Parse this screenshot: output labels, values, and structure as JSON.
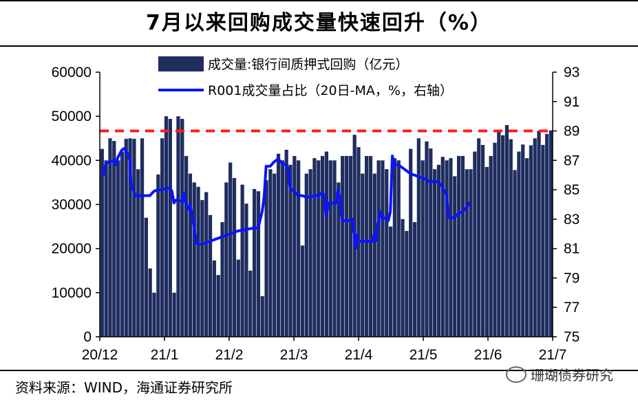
{
  "title": "7月以来回购成交量快速回升（%）",
  "source": "资料来源：WIND，海通证券研究所",
  "watermark": "珊瑚债券研究",
  "colors": {
    "bar": "#1f2d5f",
    "line": "#0a14ff",
    "threshold": "#ff1a1a"
  },
  "chart_data": {
    "type": "bar",
    "legend": [
      {
        "name": "成交量:银行间质押式回购（亿元）",
        "kind": "bar"
      },
      {
        "name": "R001成交量占比（20日-MA，%，右轴）",
        "kind": "line"
      }
    ],
    "x_ticks": [
      "20/12",
      "21/1",
      "21/2",
      "21/3",
      "21/4",
      "21/5",
      "21/6",
      "21/7"
    ],
    "y_left": {
      "min": 0,
      "max": 60000,
      "ticks": [
        0,
        10000,
        20000,
        30000,
        40000,
        50000,
        60000
      ]
    },
    "y_right": {
      "min": 75,
      "max": 93,
      "ticks": [
        75,
        77,
        79,
        81,
        83,
        85,
        87,
        89,
        91,
        93
      ]
    },
    "threshold_right": 89.0,
    "bar_values": [
      42600,
      40000,
      45000,
      44400,
      40000,
      42000,
      44900,
      45000,
      44900,
      38000,
      45000,
      27000,
      15500,
      10000,
      36800,
      45000,
      50000,
      49400,
      10000,
      50000,
      49400,
      41000,
      37000,
      35000,
      34000,
      31000,
      32800,
      27600,
      17300,
      14000,
      26000,
      35000,
      39500,
      36000,
      17500,
      34500,
      30200,
      15000,
      33500,
      33000,
      9200,
      35500,
      38000,
      37000,
      41500,
      40000,
      42400,
      39000,
      41000,
      40000,
      20700,
      37000,
      38000,
      40500,
      40000,
      41000,
      42000,
      40000,
      40000,
      35000,
      41000,
      41000,
      41000,
      45800,
      43000,
      37000,
      41000,
      41000,
      37000,
      40000,
      40000,
      38000,
      25000,
      40500,
      40000,
      26700,
      24000,
      42600,
      26000,
      45000,
      40000,
      44300,
      42700,
      38000,
      39000,
      40800,
      40000,
      40500,
      36400,
      41000,
      41000,
      38000,
      38000,
      42000,
      45000,
      43500,
      38500,
      41000,
      44000,
      46400,
      45700,
      48000,
      44800,
      37800,
      42000,
      43600,
      40500,
      43400,
      45000,
      46700,
      43500,
      46000,
      46800
    ],
    "line_points": [
      [
        0,
        85.9
      ],
      [
        0.5,
        86.1
      ],
      [
        1,
        86.8
      ],
      [
        2,
        86.9
      ],
      [
        3,
        87.0
      ],
      [
        3.6,
        86.7
      ],
      [
        4,
        87.2
      ],
      [
        5,
        87.7
      ],
      [
        5.5,
        87.8
      ],
      [
        6,
        87.7
      ],
      [
        7,
        87.0
      ],
      [
        7.3,
        85.3
      ],
      [
        8,
        84.9
      ],
      [
        8.5,
        84.6
      ],
      [
        9,
        84.6
      ],
      [
        10,
        84.6
      ],
      [
        11,
        84.6
      ],
      [
        12,
        84.6
      ],
      [
        13,
        84.9
      ],
      [
        14,
        85.0
      ],
      [
        15,
        85.0
      ],
      [
        16,
        85.1
      ],
      [
        17,
        85.1
      ],
      [
        17.5,
        84.9
      ],
      [
        18,
        84.1
      ],
      [
        18.5,
        84.3
      ],
      [
        19,
        84.3
      ],
      [
        20,
        84.2
      ],
      [
        20.5,
        84.8
      ],
      [
        21,
        84.0
      ],
      [
        21.5,
        83.7
      ],
      [
        22,
        84.0
      ],
      [
        23,
        82.5
      ],
      [
        23.5,
        81.4
      ],
      [
        24,
        81.3
      ],
      [
        25,
        81.3
      ],
      [
        26,
        81.4
      ],
      [
        28,
        81.6
      ],
      [
        30,
        81.8
      ],
      [
        32,
        82.0
      ],
      [
        34,
        82.2
      ],
      [
        36,
        82.3
      ],
      [
        38,
        82.4
      ],
      [
        39,
        82.4
      ],
      [
        40,
        83.5
      ],
      [
        40.5,
        84.5
      ],
      [
        41,
        86.6
      ],
      [
        42,
        86.6
      ],
      [
        43,
        86.9
      ],
      [
        44,
        87.1
      ],
      [
        45,
        86.8
      ],
      [
        46,
        86.7
      ],
      [
        46.5,
        86.4
      ],
      [
        47,
        85.1
      ],
      [
        48,
        84.9
      ],
      [
        49,
        84.6
      ],
      [
        50,
        84.6
      ],
      [
        51,
        84.5
      ],
      [
        52,
        84.5
      ],
      [
        53,
        84.6
      ],
      [
        54,
        84.6
      ],
      [
        55,
        84.8
      ],
      [
        55.5,
        84.6
      ],
      [
        56,
        83.2
      ],
      [
        56.5,
        84.1
      ],
      [
        57,
        84.1
      ],
      [
        58,
        84.1
      ],
      [
        58.5,
        84.1
      ],
      [
        59,
        85.0
      ],
      [
        59.5,
        84.3
      ],
      [
        60,
        82.9
      ],
      [
        61,
        82.9
      ],
      [
        62,
        82.9
      ],
      [
        62.5,
        83.0
      ],
      [
        63,
        81.9
      ],
      [
        63.3,
        81.0
      ],
      [
        63.7,
        81.9
      ],
      [
        64,
        81.5
      ],
      [
        65,
        81.5
      ],
      [
        66,
        81.5
      ],
      [
        67,
        81.5
      ],
      [
        67.5,
        81.5
      ],
      [
        68,
        82.0
      ],
      [
        68.3,
        81.5
      ],
      [
        69,
        82.9
      ],
      [
        69.5,
        83.5
      ],
      [
        70,
        83.0
      ],
      [
        70.5,
        83.1
      ],
      [
        71,
        83.0
      ],
      [
        71.5,
        82.9
      ],
      [
        72,
        83.5
      ],
      [
        72.5,
        87.3
      ],
      [
        73,
        86.7
      ],
      [
        74,
        86.7
      ],
      [
        75,
        86.5
      ],
      [
        76,
        86.3
      ],
      [
        77,
        86.1
      ],
      [
        78,
        86.0
      ],
      [
        79,
        85.9
      ],
      [
        80,
        85.8
      ],
      [
        81,
        85.7
      ],
      [
        82,
        85.5
      ],
      [
        83,
        85.6
      ],
      [
        84,
        85.5
      ],
      [
        85,
        85.2
      ],
      [
        85.5,
        84.8
      ],
      [
        86,
        84.7
      ],
      [
        86.5,
        83.1
      ],
      [
        87,
        83.1
      ],
      [
        88,
        83.1
      ],
      [
        89,
        83.4
      ],
      [
        90,
        83.5
      ],
      [
        91,
        83.8
      ],
      [
        92,
        84.2
      ]
    ]
  }
}
